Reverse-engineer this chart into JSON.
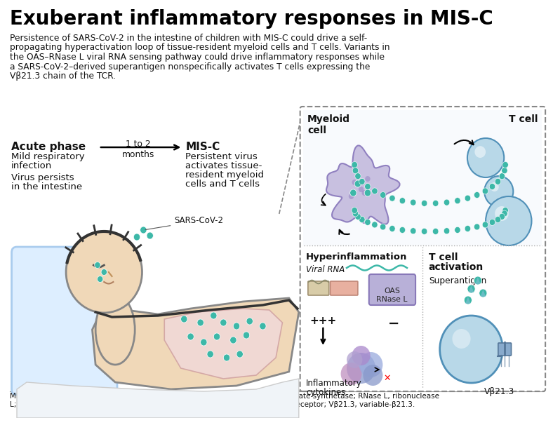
{
  "title": "Exuberant inflammatory responses in MIS-C",
  "subtitle_line1": "Persistence of SARS-CoV-2 in the intestine of children with MIS-C could drive a self-",
  "subtitle_line2": "propagating hyperactivation loop of tissue-resident myeloid cells and T cells. Variants in",
  "subtitle_line3": "the OAS–RNase L viral RNA sensing pathway could drive inflammatory responses while",
  "subtitle_line4": "a SARS-CoV-2–derived superantigen nonspecifically activates T cells expressing the",
  "subtitle_line5": "Vβ21.3 chain of the TCR.",
  "footer": "MIS-C, multisystem inflammatory syndrome in children; OAS, 2’-5’-oligoadenylate synthetase; RNase L, ribonuclease L; SARS-CoV-2, severe acute respiratory syndrome coronavirus 2; TCR, T cell receptor; Vβ21.3, variable-β21.3.",
  "acute_phase_label": "Acute phase",
  "acute_phase_text1": "Mild respiratory",
  "acute_phase_text2": "infection",
  "acute_phase_text3": "Virus persists",
  "acute_phase_text4": "in the intestine",
  "arrow_label": "1 to 2\nmonths",
  "misc_label": "MIS-C",
  "misc_text1": "Persistent virus",
  "misc_text2": "activates tissue-",
  "misc_text3": "resident myeloid",
  "misc_text4": "cells and T cells",
  "sars_label": "SARS-CoV-2",
  "myeloid_label": "Myeloid\ncell",
  "tcell_label": "T cell",
  "hyperinflammation_label": "Hyperinflammation",
  "viral_rna_label": "Viral RNA",
  "oas_label": "OAS",
  "rnase_label": "RNase L",
  "plus_label": "+++",
  "minus_label": "−",
  "inflammatory_label1": "Inflammatory",
  "inflammatory_label2": "cytokines",
  "tcell_activation_label": "T cell\nactivation",
  "superantigen_label": "Superantigen",
  "vbeta_label": "Vβ21.3",
  "bg_color": "#ffffff",
  "title_color": "#000000",
  "text_color": "#111111",
  "teal_color": "#3db8a8",
  "blue_cell_light": "#b8d8e8",
  "blue_cell_mid": "#88c0d8",
  "blue_cell_dark": "#5090b8",
  "myeloid_light": "#c8c0e0",
  "myeloid_dark": "#9080c0",
  "intestine_color": "#f0d8d8",
  "intestine_edge": "#d0a0a0",
  "box_bg": "#f5f8fc",
  "wavy_color": "#3db8a8",
  "oas_box_color": "#b8b0d8",
  "rect1_color": "#d8cca8",
  "rect2_color": "#e8b0a0",
  "cytokine_color1": "#90a8d0",
  "cytokine_color2": "#d090c0",
  "pillow_color": "#ddeeff",
  "pillow_edge": "#aaccee",
  "skin_color": "#f0d8b8",
  "skin_edge": "#c8a880",
  "body_color": "#e8e8e8",
  "body_edge": "#888888"
}
